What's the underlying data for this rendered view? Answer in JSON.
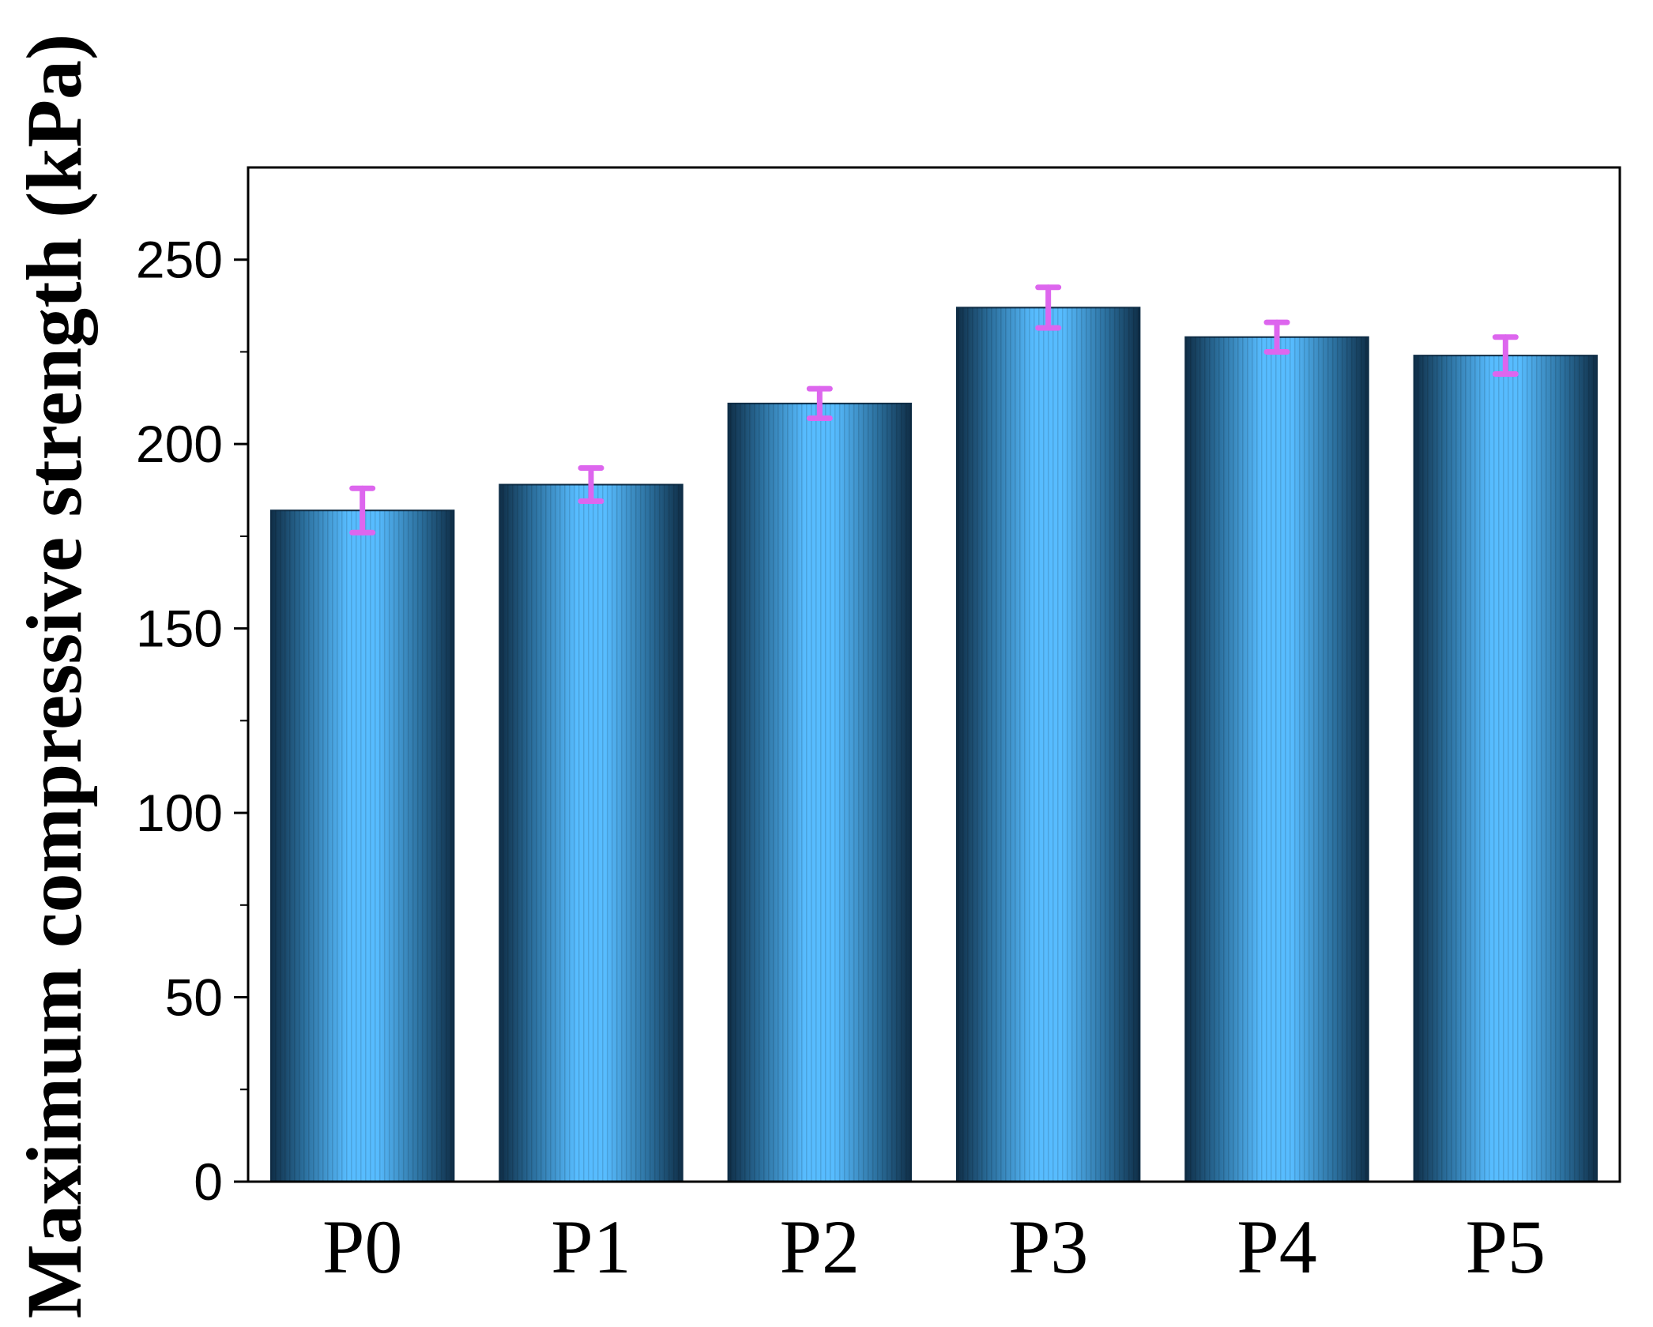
{
  "chart_data": {
    "type": "bar",
    "title": "",
    "xlabel": "",
    "ylabel": "Maximum compressive strength (kPa)",
    "categories": [
      "P0",
      "P1",
      "P2",
      "P3",
      "P4",
      "P5"
    ],
    "values": [
      182,
      189,
      211,
      237,
      229,
      224
    ],
    "errors": [
      6,
      4.5,
      4,
      5.5,
      4,
      5
    ],
    "ylim": [
      0,
      275
    ],
    "yticks": [
      0,
      50,
      100,
      150,
      200,
      250
    ],
    "ytick_labels": [
      "0",
      "50",
      "100",
      "150",
      "200",
      "250"
    ],
    "minor_yticks": [
      25,
      75,
      125,
      175,
      225
    ],
    "grid": false,
    "legend": "none",
    "colors": {
      "bar_edge": "#0f2e47",
      "bar_mid": "#2b6f9d",
      "bar_center": "#57bcff",
      "error_bar": "#dd66ee",
      "axis": "#000000"
    }
  }
}
